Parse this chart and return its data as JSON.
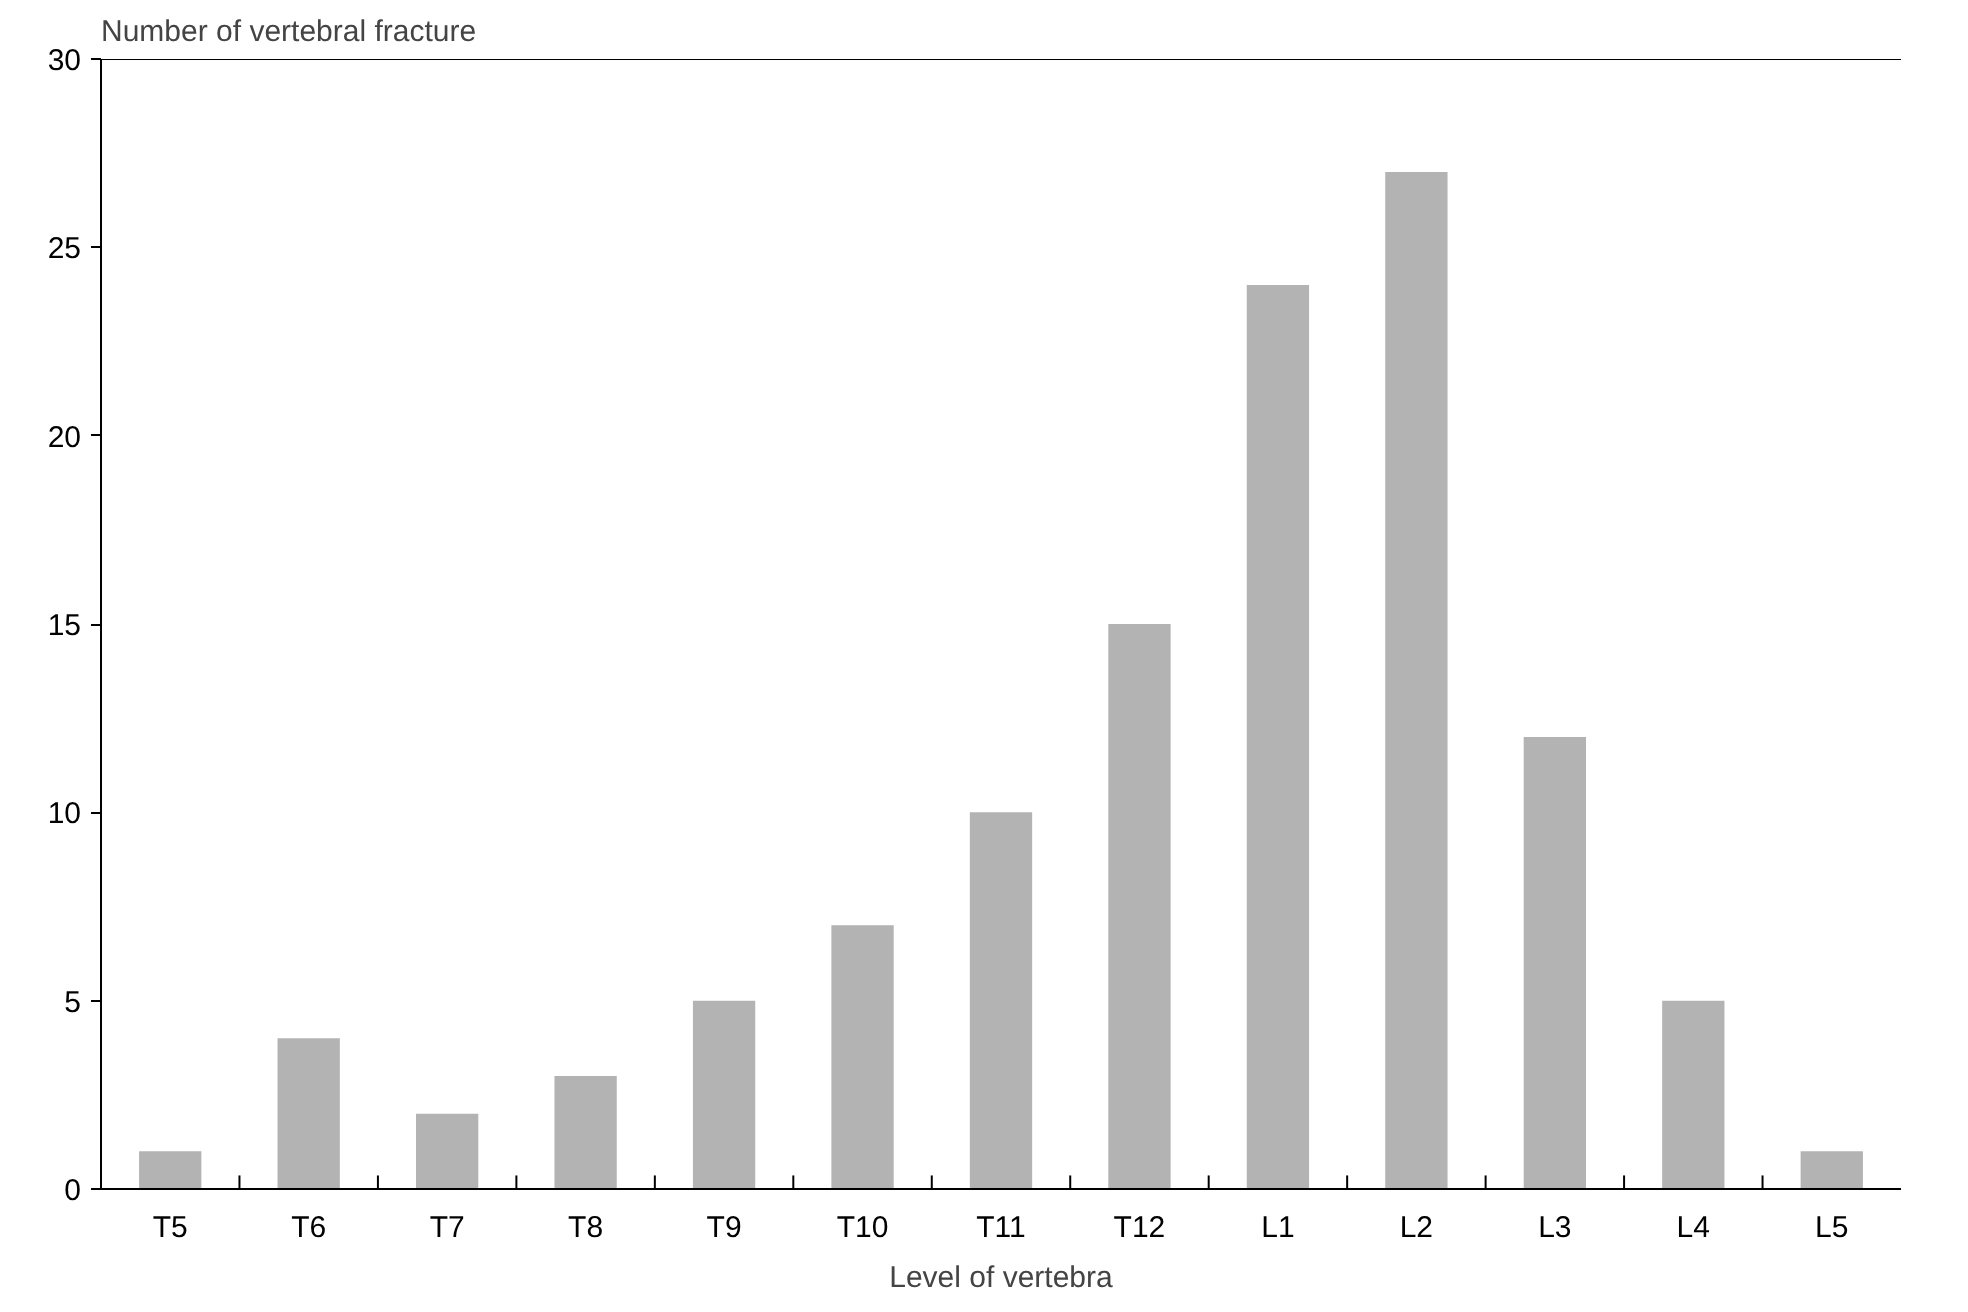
{
  "chart_data": {
    "type": "bar",
    "xlabel": "Level of vertebra",
    "ylabel": "Number of vertebral fracture",
    "categories": [
      "T5",
      "T6",
      "T7",
      "T8",
      "T9",
      "T10",
      "T11",
      "T12",
      "L1",
      "L2",
      "L3",
      "L4",
      "L5"
    ],
    "values": [
      1,
      4,
      2,
      3,
      5,
      7,
      10,
      15,
      24,
      27,
      12,
      5,
      1
    ],
    "color": "#b3b3b3",
    "ylim": [
      0,
      30
    ],
    "yticks": [
      0,
      5,
      10,
      15,
      20,
      25,
      30
    ],
    "grid": false
  }
}
